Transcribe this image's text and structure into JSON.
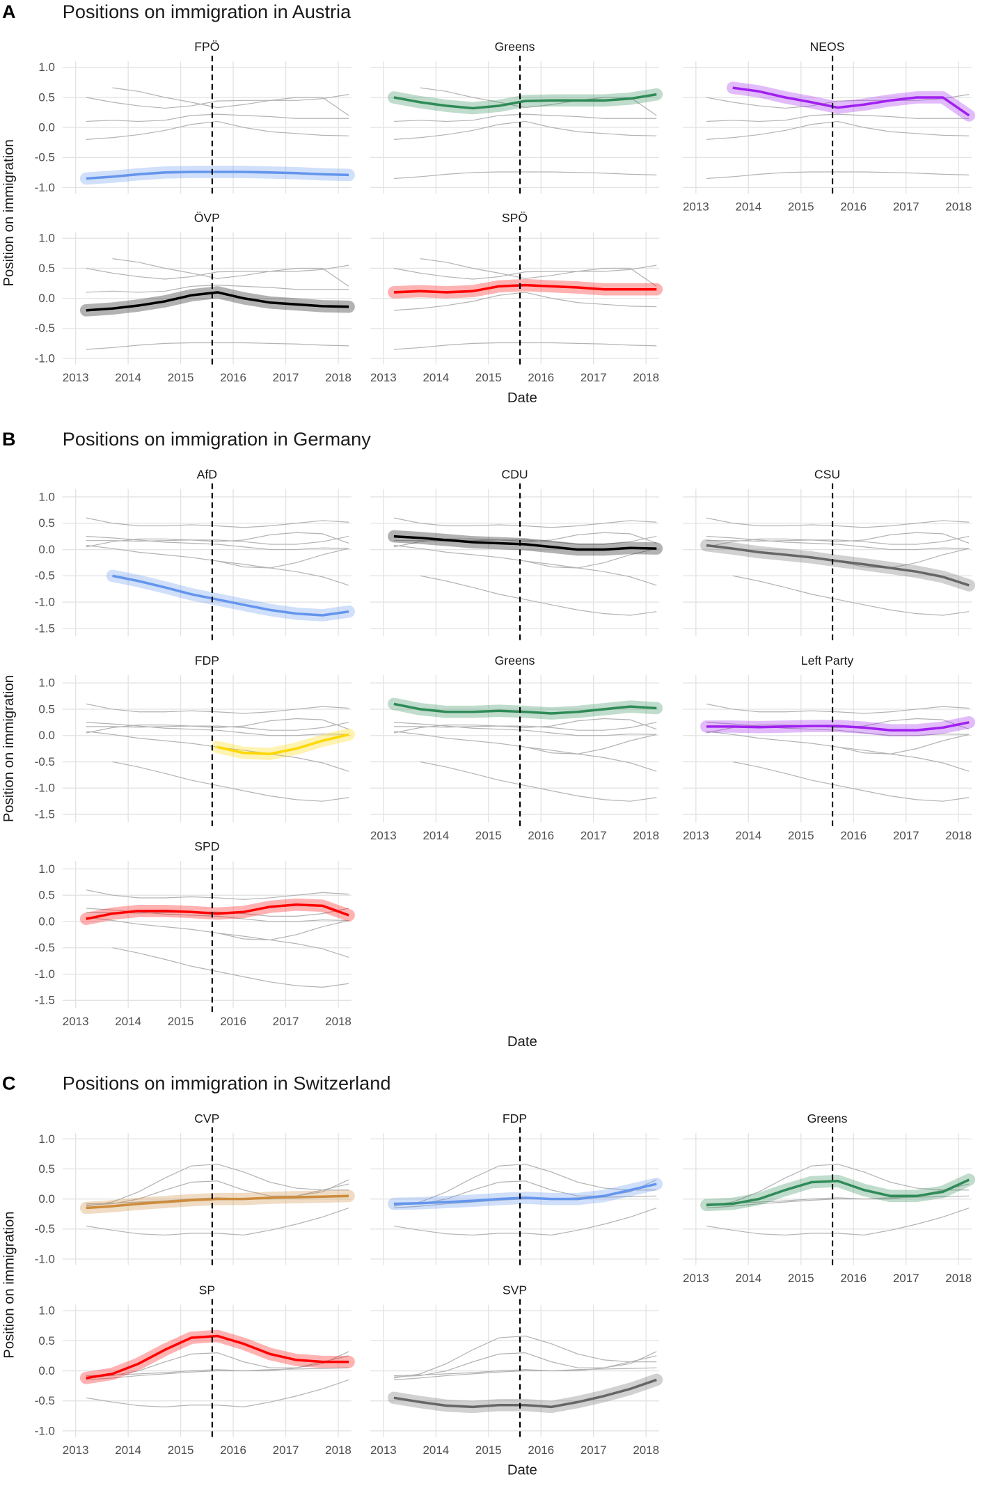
{
  "chart_data": [
    {
      "type": "line",
      "label": "A",
      "title": "Positions on immigration in Austria",
      "xlabel": "Date",
      "ylabel": "Position on immigration",
      "x": [
        2013.2,
        2013.7,
        2014.2,
        2014.7,
        2015.2,
        2015.7,
        2016.2,
        2016.7,
        2017.2,
        2017.7,
        2018.2
      ],
      "xlim": [
        2012.75,
        2018.25
      ],
      "xticks": [
        2013,
        2014,
        2015,
        2016,
        2017,
        2018
      ],
      "ylim": [
        -1.1,
        1.1
      ],
      "yticks": [
        {
          "value": 1,
          "label": "1.0"
        },
        0.5,
        {
          "value": 0,
          "label": "0.0"
        },
        -0.5,
        {
          "value": -1,
          "label": "-1.0"
        }
      ],
      "event_x": 2015.6,
      "grid": true,
      "series": [
        {
          "name": "FPÖ",
          "color": "#6495ed",
          "values": [
            -0.85,
            -0.82,
            -0.78,
            -0.75,
            -0.74,
            -0.74,
            -0.74,
            -0.75,
            -0.76,
            -0.78,
            -0.79
          ]
        },
        {
          "name": "Greens",
          "color": "#2e8b57",
          "values": [
            0.5,
            0.42,
            0.36,
            0.32,
            0.36,
            0.44,
            0.45,
            0.45,
            0.45,
            0.48,
            0.55
          ]
        },
        {
          "name": "NEOS",
          "color": "#a020f0",
          "values": [
            null,
            0.66,
            0.6,
            0.5,
            0.42,
            0.33,
            0.38,
            0.45,
            0.5,
            0.5,
            0.2
          ]
        },
        {
          "name": "ÖVP",
          "color": "#000000",
          "values": [
            -0.2,
            -0.17,
            -0.12,
            -0.05,
            0.05,
            0.1,
            0.0,
            -0.07,
            -0.1,
            -0.13,
            -0.14
          ]
        },
        {
          "name": "SPÖ",
          "color": "#ff0000",
          "values": [
            0.1,
            0.12,
            0.1,
            0.12,
            0.2,
            0.22,
            0.2,
            0.18,
            0.15,
            0.15,
            0.15
          ]
        }
      ]
    },
    {
      "type": "line",
      "label": "B",
      "title": "Positions on immigration in Germany",
      "xlabel": "Date",
      "ylabel": "Position on immigration",
      "x": [
        2013.2,
        2013.7,
        2014.2,
        2014.7,
        2015.2,
        2015.7,
        2016.2,
        2016.7,
        2017.2,
        2017.7,
        2018.2
      ],
      "xlim": [
        2012.75,
        2018.25
      ],
      "xticks": [
        2013,
        2014,
        2015,
        2016,
        2017,
        2018
      ],
      "ylim": [
        -1.65,
        1.15
      ],
      "yticks": [
        {
          "value": 1,
          "label": "1.0"
        },
        0.5,
        {
          "value": 0,
          "label": "0.0"
        },
        -0.5,
        {
          "value": -1,
          "label": "-1.0"
        },
        -1.5
      ],
      "event_x": 2015.6,
      "grid": true,
      "series": [
        {
          "name": "AfD",
          "color": "#6495ed",
          "values": [
            null,
            -0.5,
            -0.6,
            -0.72,
            -0.85,
            -0.95,
            -1.05,
            -1.15,
            -1.22,
            -1.25,
            -1.18
          ]
        },
        {
          "name": "CDU",
          "color": "#000000",
          "values": [
            0.25,
            0.22,
            0.18,
            0.14,
            0.12,
            0.1,
            0.05,
            0.0,
            0.0,
            0.03,
            0.02
          ]
        },
        {
          "name": "CSU",
          "color": "#666666",
          "values": [
            0.08,
            0.02,
            -0.05,
            -0.1,
            -0.15,
            -0.22,
            -0.28,
            -0.35,
            -0.42,
            -0.52,
            -0.68
          ]
        },
        {
          "name": "FDP",
          "color": "#ffd700",
          "values": [
            null,
            null,
            null,
            null,
            null,
            -0.22,
            -0.33,
            -0.35,
            -0.25,
            -0.1,
            0.02
          ]
        },
        {
          "name": "Greens",
          "color": "#2e8b57",
          "values": [
            0.6,
            0.5,
            0.45,
            0.45,
            0.47,
            0.45,
            0.42,
            0.45,
            0.5,
            0.55,
            0.52
          ]
        },
        {
          "name": "Left Party",
          "color": "#a020f0",
          "values": [
            0.17,
            0.17,
            0.16,
            0.17,
            0.18,
            0.18,
            0.15,
            0.1,
            0.1,
            0.15,
            0.25
          ]
        },
        {
          "name": "SPD",
          "color": "#ff0000",
          "values": [
            0.05,
            0.15,
            0.2,
            0.2,
            0.18,
            0.15,
            0.18,
            0.28,
            0.32,
            0.3,
            0.12
          ]
        }
      ]
    },
    {
      "type": "line",
      "label": "C",
      "title": "Positions on immigration in Switzerland",
      "xlabel": "Date",
      "ylabel": "Position on immigration",
      "x": [
        2013.2,
        2013.7,
        2014.2,
        2014.7,
        2015.2,
        2015.7,
        2016.2,
        2016.7,
        2017.2,
        2017.7,
        2018.2
      ],
      "xlim": [
        2012.75,
        2018.25
      ],
      "xticks": [
        2013,
        2014,
        2015,
        2016,
        2017,
        2018
      ],
      "ylim": [
        -1.1,
        1.1
      ],
      "yticks": [
        {
          "value": 1,
          "label": "1.0"
        },
        0.5,
        {
          "value": 0,
          "label": "0.0"
        },
        -0.5,
        {
          "value": -1,
          "label": "-1.0"
        }
      ],
      "event_x": 2015.6,
      "grid": true,
      "series": [
        {
          "name": "CVP",
          "color": "#cd8c3c",
          "values": [
            -0.15,
            -0.12,
            -0.08,
            -0.05,
            -0.02,
            0.0,
            0.0,
            0.02,
            0.03,
            0.04,
            0.05
          ]
        },
        {
          "name": "FDP",
          "color": "#6495ed",
          "values": [
            -0.08,
            -0.07,
            -0.05,
            -0.03,
            0.0,
            0.02,
            0.0,
            0.0,
            0.05,
            0.15,
            0.25
          ]
        },
        {
          "name": "Greens",
          "color": "#2e8b57",
          "values": [
            -0.1,
            -0.08,
            0.0,
            0.15,
            0.28,
            0.3,
            0.15,
            0.05,
            0.05,
            0.12,
            0.32
          ]
        },
        {
          "name": "SP",
          "color": "#ff0000",
          "values": [
            -0.12,
            -0.05,
            0.12,
            0.35,
            0.55,
            0.58,
            0.45,
            0.28,
            0.18,
            0.15,
            0.15
          ]
        },
        {
          "name": "SVP",
          "color": "#666666",
          "values": [
            -0.45,
            -0.52,
            -0.58,
            -0.6,
            -0.57,
            -0.57,
            -0.6,
            -0.52,
            -0.42,
            -0.3,
            -0.15
          ]
        }
      ]
    }
  ]
}
